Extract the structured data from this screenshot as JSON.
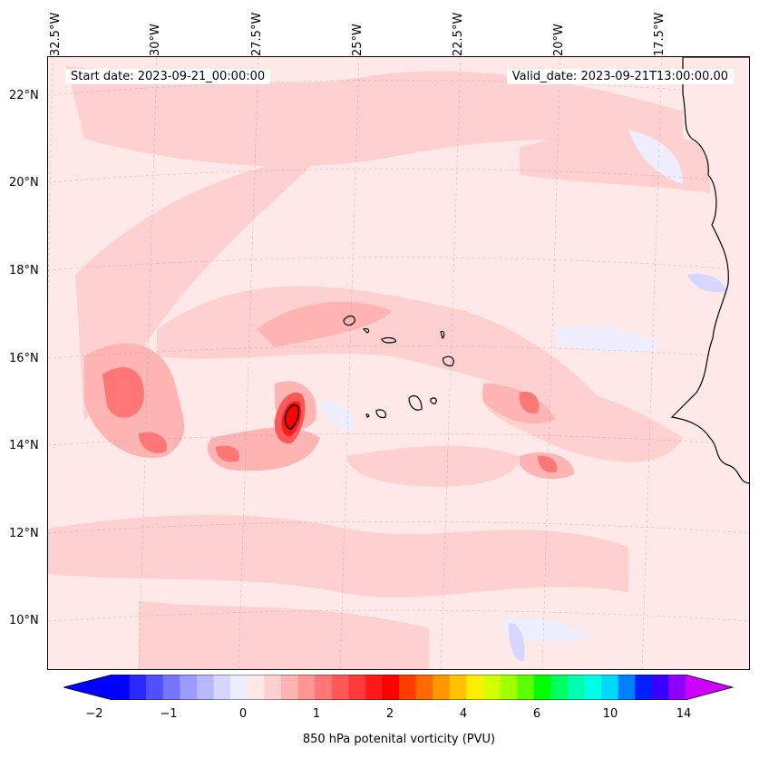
{
  "map": {
    "start_date": "Start date: 2023-09-21_00:00:00",
    "valid_date": "Valid_date: 2023-09-21T13:00:00.00",
    "lon_labels": [
      "32.5°W",
      "30°W",
      "27.5°W",
      "25°W",
      "22.5°W",
      "20°W",
      "17.5°W"
    ],
    "lat_labels": [
      "22°N",
      "20°N",
      "18°N",
      "16°N",
      "14°N",
      "12°N",
      "10°N"
    ],
    "variable": "850 hPa potential vorticity"
  },
  "colorbar": {
    "label": "850 hPa potenital vorticity (PVU)",
    "ticks": [
      "−2",
      "−1",
      "0",
      "1",
      "2",
      "4",
      "6",
      "10",
      "14"
    ],
    "colors": [
      "#0000ff",
      "#2a2aff",
      "#5050ff",
      "#7575ff",
      "#9a9aff",
      "#b8b8ff",
      "#d6d6ff",
      "#eeeeff",
      "#ffe8e8",
      "#ffd0d0",
      "#ffb4b4",
      "#ff9595",
      "#ff7676",
      "#ff5858",
      "#ff3a3a",
      "#ff1a1a",
      "#ff0000",
      "#ff3c00",
      "#ff6a00",
      "#ff9600",
      "#ffc200",
      "#ffee00",
      "#d4ff00",
      "#a0ff00",
      "#5cff00",
      "#00ff00",
      "#00ff60",
      "#00ffb0",
      "#00ffe8",
      "#00d8ff",
      "#0080ff",
      "#0020ff",
      "#3a00ff",
      "#9000ff"
    ],
    "under_color": "#0000ff",
    "over_color": "#cc00ff"
  }
}
